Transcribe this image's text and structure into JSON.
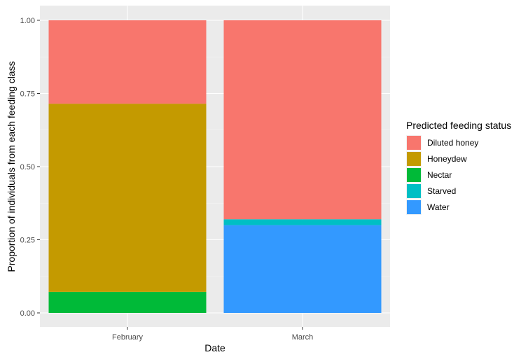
{
  "chart_data": {
    "type": "bar",
    "stacked": true,
    "xlabel": "Date",
    "ylabel": "Proportion of individuals from each feeding class",
    "categories": [
      "February",
      "March"
    ],
    "ylim": [
      0,
      1
    ],
    "yticks": [
      "0.00",
      "0.25",
      "0.50",
      "0.75",
      "1.00"
    ],
    "ytick_values": [
      0,
      0.25,
      0.5,
      0.75,
      1
    ],
    "grid": true,
    "legend_title": "Predicted feeding status",
    "legend_position": "right",
    "series": [
      {
        "name": "Diluted honey",
        "color": "#F8766D",
        "values": [
          0.285,
          0.68
        ]
      },
      {
        "name": "Honeydew",
        "color": "#C49A00",
        "values": [
          0.643,
          0
        ]
      },
      {
        "name": "Nectar",
        "color": "#00BA38",
        "values": [
          0.072,
          0
        ]
      },
      {
        "name": "Starved",
        "color": "#00BFC4",
        "values": [
          0,
          0.02
        ]
      },
      {
        "name": "Water",
        "color": "#3399FF",
        "values": [
          0,
          0.3
        ]
      }
    ],
    "stack_order_bottom_to_top": [
      "Water",
      "Starved",
      "Nectar",
      "Honeydew",
      "Diluted honey"
    ]
  }
}
